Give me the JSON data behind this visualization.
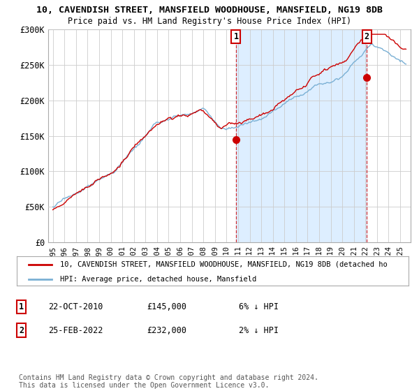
{
  "title1": "10, CAVENDISH STREET, MANSFIELD WOODHOUSE, MANSFIELD, NG19 8DB",
  "title2": "Price paid vs. HM Land Registry's House Price Index (HPI)",
  "ylim": [
    0,
    300000
  ],
  "yticks": [
    0,
    50000,
    100000,
    150000,
    200000,
    250000,
    300000
  ],
  "ytick_labels": [
    "£0",
    "£50K",
    "£100K",
    "£150K",
    "£200K",
    "£250K",
    "£300K"
  ],
  "sale1_year": 2010.82,
  "sale1_price": 145000,
  "sale2_year": 2022.12,
  "sale2_price": 232000,
  "sale1_date": "22-OCT-2010",
  "sale1_price_str": "£145,000",
  "sale1_hpi_str": "6% ↓ HPI",
  "sale2_date": "25-FEB-2022",
  "sale2_price_str": "£232,000",
  "sale2_hpi_str": "2% ↓ HPI",
  "red_color": "#cc0000",
  "blue_color": "#7ab0d4",
  "shade_color": "#ddeeff",
  "legend_label1": "10, CAVENDISH STREET, MANSFIELD WOODHOUSE, MANSFIELD, NG19 8DB (detached ho",
  "legend_label2": "HPI: Average price, detached house, Mansfield",
  "footer": "Contains HM Land Registry data © Crown copyright and database right 2024.\nThis data is licensed under the Open Government Licence v3.0.",
  "bg_color": "#ffffff",
  "grid_color": "#cccccc"
}
